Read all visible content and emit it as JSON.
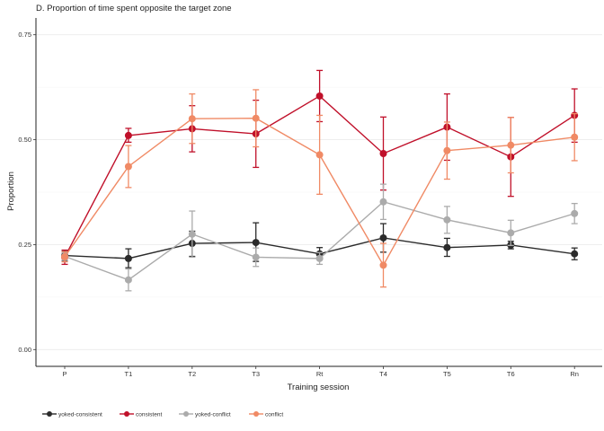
{
  "chart_data": {
    "type": "line",
    "title": "D. Proportion of time spent opposite the target zone",
    "xlabel": "Training session",
    "ylabel": "Proportion",
    "categories": [
      "P",
      "T1",
      "T2",
      "T3",
      "Rt",
      "T4",
      "T5",
      "T6",
      "Rn"
    ],
    "yticks": [
      "0.00",
      "0.25",
      "0.50",
      "0.75"
    ],
    "ylim": [
      -0.04,
      0.79
    ],
    "grid": "horizontal",
    "legend_position": "bottom-left",
    "series": [
      {
        "name": "yoked-consistent",
        "color": "#2b2b2b",
        "values": [
          0.224,
          0.217,
          0.253,
          0.255,
          0.228,
          0.266,
          0.243,
          0.249,
          0.228
        ],
        "err_low": [
          0.212,
          0.195,
          0.222,
          0.21,
          0.215,
          0.232,
          0.222,
          0.24,
          0.214
        ],
        "err_high": [
          0.236,
          0.24,
          0.282,
          0.302,
          0.243,
          0.3,
          0.265,
          0.258,
          0.242
        ]
      },
      {
        "name": "consistent",
        "color": "#c0102a",
        "values": [
          0.22,
          0.51,
          0.526,
          0.514,
          0.604,
          0.467,
          0.53,
          0.459,
          0.558
        ],
        "err_low": [
          0.203,
          0.494,
          0.471,
          0.434,
          0.543,
          0.38,
          0.451,
          0.365,
          0.494
        ],
        "err_high": [
          0.237,
          0.527,
          0.581,
          0.594,
          0.665,
          0.554,
          0.609,
          0.553,
          0.621
        ]
      },
      {
        "name": "yoked-conflict",
        "color": "#ababab",
        "values": [
          0.222,
          0.166,
          0.275,
          0.22,
          0.217,
          0.352,
          0.309,
          0.278,
          0.324
        ],
        "err_low": [
          0.213,
          0.14,
          0.22,
          0.198,
          0.203,
          0.31,
          0.277,
          0.248,
          0.3
        ],
        "err_high": [
          0.231,
          0.192,
          0.33,
          0.242,
          0.231,
          0.394,
          0.341,
          0.308,
          0.348
        ]
      },
      {
        "name": "conflict",
        "color": "#f08a65",
        "values": [
          0.221,
          0.436,
          0.55,
          0.551,
          0.464,
          0.201,
          0.474,
          0.487,
          0.506
        ],
        "err_low": [
          0.209,
          0.386,
          0.491,
          0.483,
          0.37,
          0.149,
          0.406,
          0.421,
          0.45
        ],
        "err_high": [
          0.233,
          0.486,
          0.609,
          0.619,
          0.558,
          0.253,
          0.542,
          0.553,
          0.562
        ]
      }
    ]
  }
}
